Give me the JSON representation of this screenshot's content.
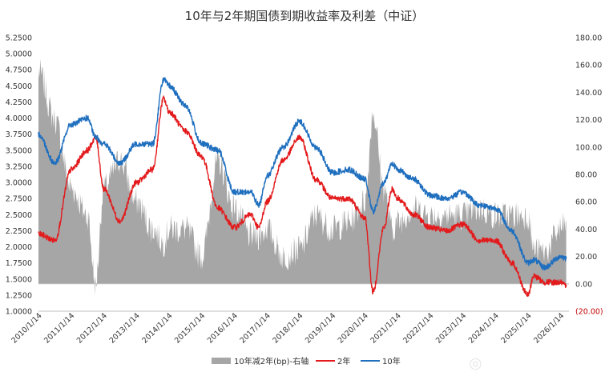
{
  "chart_data": {
    "type": "line",
    "title": "10年与2年期国债到期收益率及利差（中证）",
    "left_axis": {
      "ylim": [
        1.0,
        5.25
      ],
      "ticks": [
        "1.0000",
        "1.2500",
        "1.5000",
        "1.7500",
        "2.0000",
        "2.2500",
        "2.5000",
        "2.7500",
        "3.0000",
        "3.2500",
        "3.5000",
        "3.7500",
        "4.0000",
        "4.2500",
        "4.5000",
        "4.7500",
        "5.0000",
        "5.2500"
      ]
    },
    "right_axis": {
      "ylim": [
        -20,
        180
      ],
      "ticks": [
        "(20.00)",
        "0.00",
        "20.00",
        "40.00",
        "60.00",
        "80.00",
        "100.00",
        "120.00",
        "140.00",
        "160.00",
        "180.00"
      ]
    },
    "x_ticks": [
      "2010/1/14",
      "2011/1/14",
      "2012/1/14",
      "2013/1/14",
      "2014/1/14",
      "2015/1/14",
      "2016/1/14",
      "2017/1/14",
      "2018/1/14",
      "2019/1/14",
      "2020/1/14",
      "2021/1/14",
      "2022/1/14",
      "2023/1/14",
      "2024/1/14",
      "2025/1/14",
      "2026/1/14"
    ],
    "legend": [
      "10年减2年(bp)-右轴",
      "2年",
      "10年"
    ],
    "colors": {
      "spread": "#a6a6a6",
      "y2": "#e31a1c",
      "y10": "#1f6fbf"
    },
    "series": [
      {
        "name": "10年",
        "axis": "left",
        "x": [
          "2010-01",
          "2010-07",
          "2011-01",
          "2011-07",
          "2011-10",
          "2012-01",
          "2012-07",
          "2013-01",
          "2013-07",
          "2013-11",
          "2014-01",
          "2014-07",
          "2015-01",
          "2015-07",
          "2016-01",
          "2016-07",
          "2016-10",
          "2017-01",
          "2017-07",
          "2018-01",
          "2018-07",
          "2019-01",
          "2019-07",
          "2020-01",
          "2020-04",
          "2020-08",
          "2020-11",
          "2021-01",
          "2021-07",
          "2022-01",
          "2022-07",
          "2023-01",
          "2023-07",
          "2024-01",
          "2024-07",
          "2025-01",
          "2025-03",
          "2025-07",
          "2026-01",
          "2026-03"
        ],
        "values": [
          3.75,
          3.3,
          3.9,
          4.0,
          3.7,
          3.6,
          3.3,
          3.6,
          3.6,
          4.6,
          4.5,
          4.2,
          3.6,
          3.5,
          2.85,
          2.85,
          2.65,
          3.1,
          3.55,
          3.95,
          3.55,
          3.15,
          3.2,
          3.05,
          2.55,
          3.0,
          3.3,
          3.2,
          3.05,
          2.8,
          2.75,
          2.85,
          2.65,
          2.6,
          2.25,
          1.75,
          1.8,
          1.68,
          1.85,
          1.82
        ]
      },
      {
        "name": "2年",
        "axis": "left",
        "x": [
          "2010-01",
          "2010-07",
          "2011-01",
          "2011-07",
          "2011-10",
          "2012-01",
          "2012-07",
          "2013-01",
          "2013-07",
          "2013-11",
          "2014-01",
          "2014-07",
          "2015-01",
          "2015-07",
          "2016-01",
          "2016-07",
          "2016-10",
          "2017-01",
          "2017-07",
          "2018-01",
          "2018-07",
          "2019-01",
          "2019-07",
          "2020-01",
          "2020-04",
          "2020-08",
          "2020-11",
          "2021-01",
          "2021-07",
          "2022-01",
          "2022-07",
          "2023-01",
          "2023-07",
          "2024-01",
          "2024-07",
          "2025-01",
          "2025-03",
          "2025-07",
          "2026-01",
          "2026-03"
        ],
        "values": [
          2.2,
          2.1,
          3.2,
          3.5,
          3.7,
          2.9,
          2.4,
          3.0,
          3.2,
          4.3,
          4.1,
          3.8,
          3.4,
          2.6,
          2.3,
          2.5,
          2.3,
          2.7,
          3.35,
          3.7,
          3.05,
          2.75,
          2.75,
          2.45,
          1.3,
          2.3,
          2.9,
          2.75,
          2.5,
          2.3,
          2.25,
          2.35,
          2.1,
          2.1,
          1.75,
          1.25,
          1.55,
          1.45,
          1.45,
          1.38
        ]
      },
      {
        "name": "10年减2年(bp)-右轴",
        "axis": "right",
        "x": [
          "2010-01",
          "2010-07",
          "2011-01",
          "2011-07",
          "2011-10",
          "2012-01",
          "2012-07",
          "2013-01",
          "2013-07",
          "2013-11",
          "2014-01",
          "2014-07",
          "2015-01",
          "2015-07",
          "2016-01",
          "2016-07",
          "2016-10",
          "2017-01",
          "2017-07",
          "2018-01",
          "2018-07",
          "2019-01",
          "2019-07",
          "2020-01",
          "2020-04",
          "2020-08",
          "2020-11",
          "2021-01",
          "2021-07",
          "2022-01",
          "2022-07",
          "2023-01",
          "2023-07",
          "2024-01",
          "2024-07",
          "2025-01",
          "2025-03",
          "2025-07",
          "2026-01",
          "2026-03"
        ],
        "values": [
          155,
          120,
          70,
          50,
          0,
          70,
          90,
          60,
          40,
          30,
          40,
          40,
          20,
          90,
          55,
          35,
          35,
          40,
          20,
          25,
          50,
          40,
          45,
          60,
          125,
          70,
          40,
          45,
          55,
          50,
          50,
          50,
          55,
          50,
          50,
          50,
          25,
          23,
          40,
          44
        ]
      }
    ]
  }
}
